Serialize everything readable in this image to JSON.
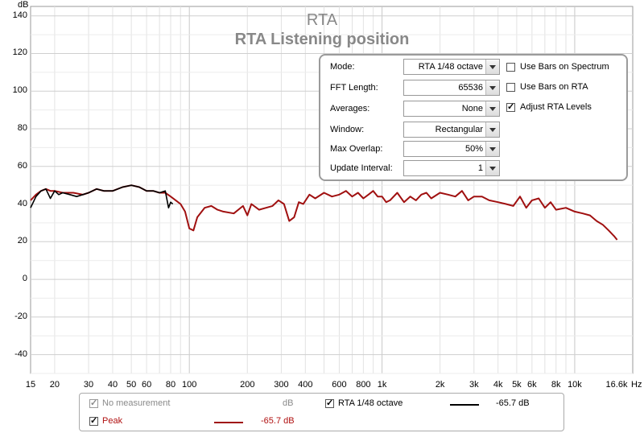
{
  "chart_data": {
    "type": "line",
    "title": "RTA",
    "subtitle": "RTA Listening position",
    "ylabel": "dB",
    "xlabel": "Hz",
    "xscale": "log",
    "xlim": [
      15,
      20000
    ],
    "ylim": [
      -50,
      145
    ],
    "y_ticks": [
      140,
      120,
      100,
      80,
      60,
      40,
      20,
      0,
      -20,
      -40
    ],
    "x_ticks": [
      {
        "v": 15,
        "label": "15"
      },
      {
        "v": 20,
        "label": "20"
      },
      {
        "v": 30,
        "label": "30"
      },
      {
        "v": 40,
        "label": "40"
      },
      {
        "v": 50,
        "label": "50"
      },
      {
        "v": 60,
        "label": "60"
      },
      {
        "v": 80,
        "label": "80"
      },
      {
        "v": 100,
        "label": "100"
      },
      {
        "v": 200,
        "label": "200"
      },
      {
        "v": 300,
        "label": "300"
      },
      {
        "v": 400,
        "label": "400"
      },
      {
        "v": 600,
        "label": "600"
      },
      {
        "v": 800,
        "label": "800"
      },
      {
        "v": 1000,
        "label": "1k"
      },
      {
        "v": 2000,
        "label": "2k"
      },
      {
        "v": 3000,
        "label": "3k"
      },
      {
        "v": 4000,
        "label": "4k"
      },
      {
        "v": 5000,
        "label": "5k"
      },
      {
        "v": 6000,
        "label": "6k"
      },
      {
        "v": 8000,
        "label": "8k"
      },
      {
        "v": 10000,
        "label": "10k"
      },
      {
        "v": 16600,
        "label": "16.6k"
      }
    ],
    "grid": true,
    "series": [
      {
        "name": "RTA 1/48 octave",
        "color": "#000000",
        "x": [
          15,
          16,
          17,
          18,
          19,
          20,
          21,
          22,
          24,
          26,
          28,
          30,
          33,
          36,
          40,
          45,
          50,
          55,
          60,
          65,
          70,
          75,
          78,
          80,
          82
        ],
        "y": [
          38,
          44,
          47,
          48,
          43,
          47,
          45,
          46,
          45,
          44,
          45,
          46,
          48,
          47,
          47,
          49,
          50,
          49,
          47,
          47,
          46,
          47,
          38,
          41,
          40
        ]
      },
      {
        "name": "Peak",
        "color": "#a01010",
        "x": [
          15,
          16,
          17,
          18,
          19,
          20,
          22,
          25,
          28,
          30,
          33,
          36,
          40,
          45,
          50,
          55,
          60,
          65,
          70,
          75,
          80,
          85,
          90,
          95,
          100,
          105,
          110,
          120,
          130,
          140,
          150,
          170,
          190,
          200,
          210,
          230,
          250,
          270,
          290,
          310,
          330,
          350,
          370,
          390,
          420,
          450,
          500,
          550,
          600,
          650,
          700,
          750,
          800,
          850,
          900,
          950,
          1000,
          1050,
          1100,
          1200,
          1300,
          1400,
          1500,
          1600,
          1700,
          1800,
          2000,
          2200,
          2400,
          2600,
          2800,
          3000,
          3300,
          3600,
          4000,
          4400,
          4800,
          5200,
          5600,
          6000,
          6500,
          7000,
          7500,
          8000,
          9000,
          10000,
          11000,
          12000,
          13000,
          14000,
          15000,
          16000,
          16600
        ],
        "y": [
          42,
          45,
          47,
          48,
          47,
          47,
          46,
          46,
          45,
          46,
          48,
          47,
          47,
          49,
          50,
          49,
          47,
          47,
          46,
          46,
          44,
          42,
          40,
          36,
          27,
          26,
          33,
          38,
          39,
          37,
          36,
          35,
          39,
          34,
          40,
          37,
          38,
          39,
          42,
          40,
          31,
          33,
          41,
          40,
          45,
          43,
          46,
          44,
          45,
          47,
          44,
          46,
          43,
          45,
          47,
          44,
          44,
          41,
          42,
          46,
          41,
          44,
          42,
          45,
          46,
          43,
          46,
          45,
          44,
          47,
          42,
          44,
          44,
          42,
          41,
          40,
          39,
          44,
          38,
          42,
          43,
          38,
          41,
          37,
          38,
          36,
          35,
          34,
          31,
          29,
          26,
          23,
          21
        ]
      }
    ]
  },
  "titles": {
    "title": "RTA",
    "subtitle": "RTA Listening position"
  },
  "axis": {
    "y_unit": "dB",
    "x_unit": "Hz"
  },
  "panel": {
    "mode_label": "Mode:",
    "mode_value": "RTA 1/48 octave",
    "fft_label": "FFT Length:",
    "fft_value": "65536",
    "avg_label": "Averages:",
    "avg_value": "None",
    "window_label": "Window:",
    "window_value": "Rectangular",
    "overlap_label": "Max Overlap:",
    "overlap_value": "50%",
    "interval_label": "Update Interval:",
    "interval_value": "1",
    "bars_spectrum_label": "Use Bars on Spectrum",
    "bars_rta_label": "Use Bars on RTA",
    "adjust_label": "Adjust RTA Levels"
  },
  "legend": {
    "no_meas_label": "No measurement",
    "no_meas_unit": "dB",
    "rta_label": "RTA 1/48 octave",
    "rta_value": "-65.7 dB",
    "peak_label": "Peak",
    "peak_value": "-65.7 dB",
    "rta_color": "#000000",
    "peak_color": "#a01010"
  }
}
